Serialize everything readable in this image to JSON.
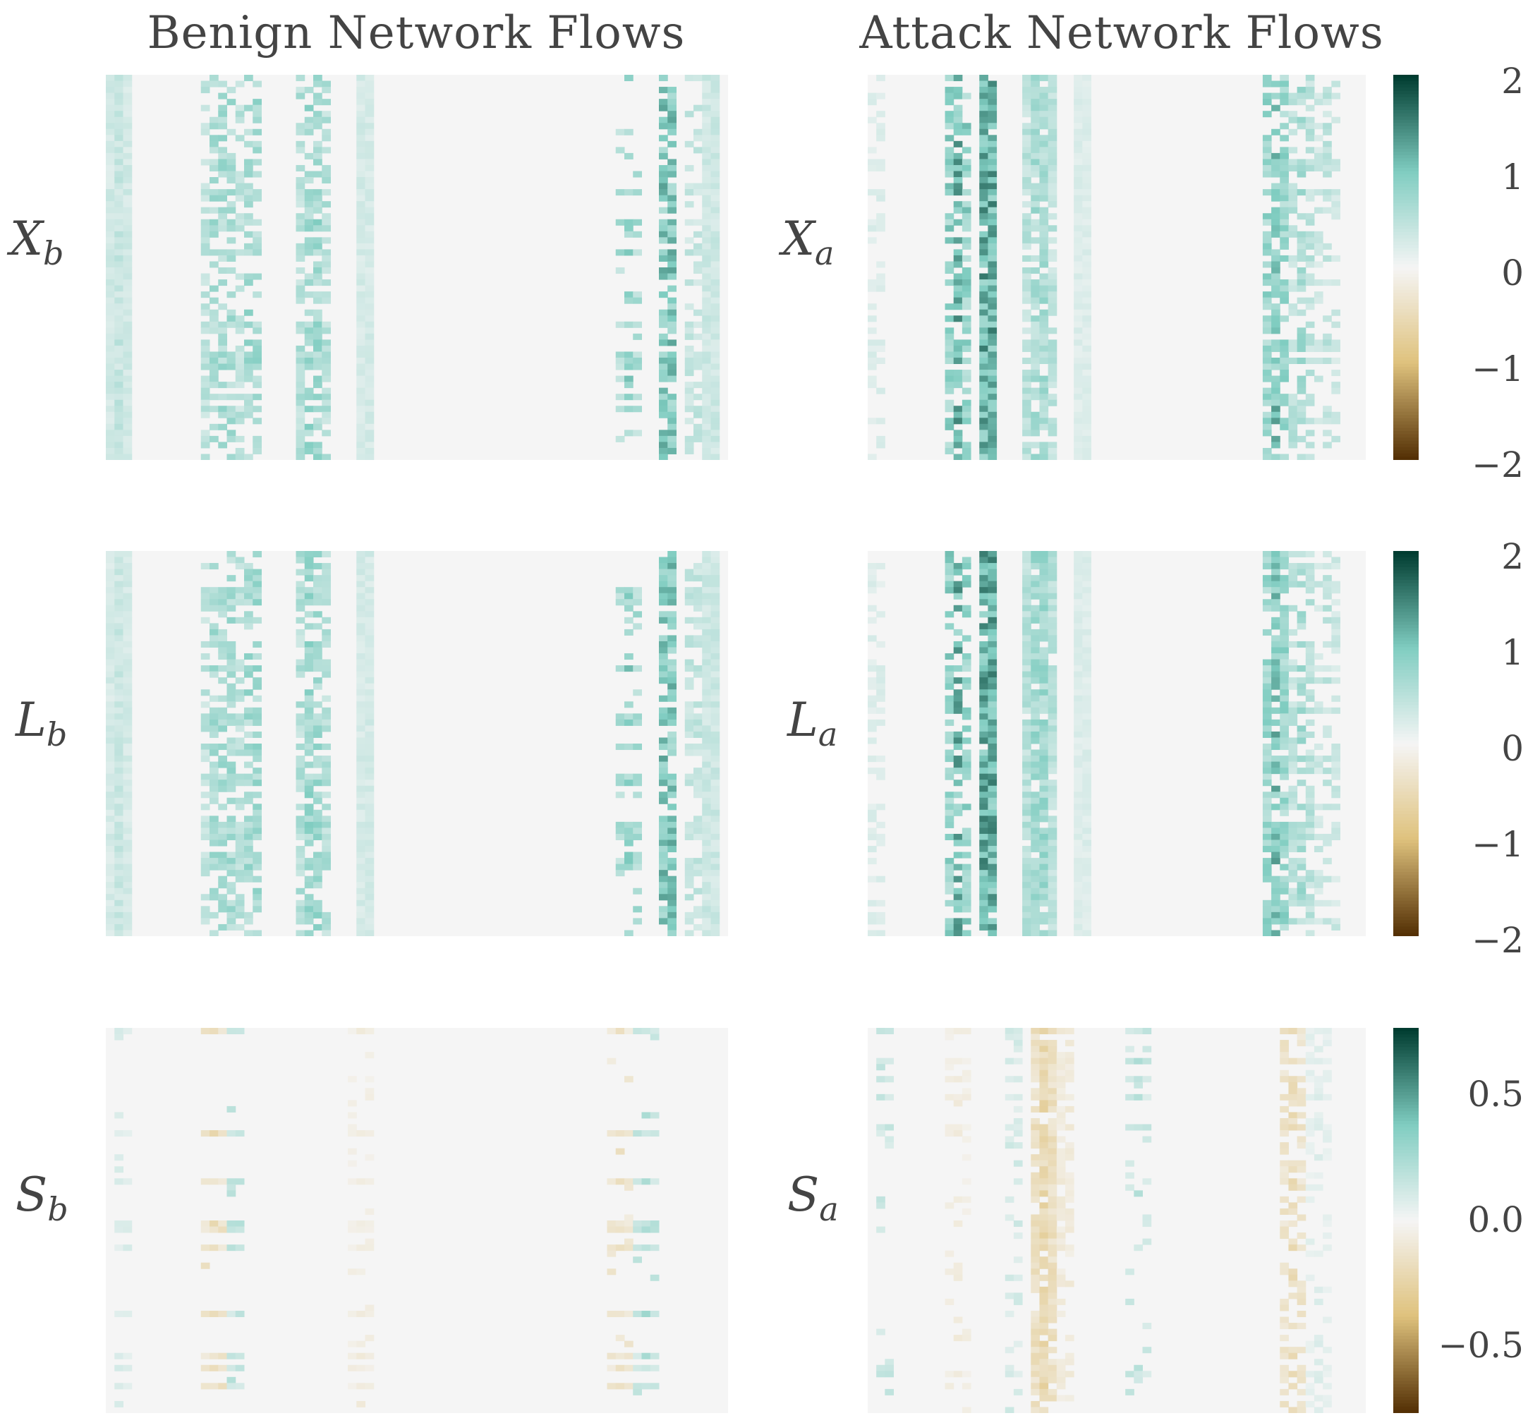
{
  "chart_data": [
    {
      "type": "heatmap",
      "title": "Benign Network Flows",
      "row_label": "X",
      "row_label_sub": "b",
      "colorbar": "cb1",
      "highlights": [
        {
          "cols": [
            0,
            1,
            2
          ],
          "level": 0.22
        },
        {
          "cols": [
            11,
            12,
            13,
            14,
            15
          ],
          "level": 0.35,
          "sparse": 0.5
        },
        {
          "cols": [
            16,
            17
          ],
          "level": 0.5,
          "sparse": 0.5
        },
        {
          "cols": [
            22,
            23,
            24,
            25
          ],
          "level": 0.4,
          "sparse": 0.4
        },
        {
          "cols": [
            29,
            30
          ],
          "level": 0.2
        },
        {
          "cols": [
            59,
            60,
            61
          ],
          "level": 0.45,
          "sparse": 0.85
        },
        {
          "cols": [
            64,
            65
          ],
          "level": 0.7,
          "sparse": 0.3
        },
        {
          "cols": [
            67,
            68
          ],
          "level": 0.3,
          "sparse": 0.6
        },
        {
          "cols": [
            69,
            70
          ],
          "level": 0.25
        }
      ]
    },
    {
      "type": "heatmap",
      "title": "Attack Network Flows",
      "row_label": "X",
      "row_label_sub": "a",
      "colorbar": "cb1",
      "highlights": [
        {
          "cols": [
            0,
            1
          ],
          "level": 0.15,
          "sparse": 0.7
        },
        {
          "cols": [
            9,
            10,
            11
          ],
          "level": 0.6,
          "sparse": 0.45
        },
        {
          "cols": [
            13,
            14
          ],
          "level": 0.85,
          "sparse": 0.05
        },
        {
          "cols": [
            18,
            19,
            20,
            21
          ],
          "level": 0.35,
          "sparse": 0.2
        },
        {
          "cols": [
            24,
            25
          ],
          "level": 0.15
        },
        {
          "cols": [
            46,
            47,
            48
          ],
          "level": 0.55,
          "sparse": 0.3
        },
        {
          "cols": [
            49,
            50,
            51
          ],
          "level": 0.35,
          "sparse": 0.5
        },
        {
          "cols": [
            52,
            53,
            54
          ],
          "level": 0.25,
          "sparse": 0.7
        }
      ]
    },
    {
      "type": "heatmap",
      "row_label": "L",
      "row_label_sub": "b",
      "colorbar": "cb2",
      "highlights": [
        {
          "cols": [
            0,
            1,
            2
          ],
          "level": 0.2
        },
        {
          "cols": [
            11,
            12,
            13,
            14,
            15
          ],
          "level": 0.35,
          "sparse": 0.5
        },
        {
          "cols": [
            16,
            17
          ],
          "level": 0.5,
          "sparse": 0.5
        },
        {
          "cols": [
            22,
            23,
            24,
            25
          ],
          "level": 0.4,
          "sparse": 0.4
        },
        {
          "cols": [
            29,
            30
          ],
          "level": 0.2
        },
        {
          "cols": [
            59,
            60,
            61
          ],
          "level": 0.45,
          "sparse": 0.85
        },
        {
          "cols": [
            64,
            65
          ],
          "level": 0.7,
          "sparse": 0.3
        },
        {
          "cols": [
            67,
            68
          ],
          "level": 0.3,
          "sparse": 0.6
        },
        {
          "cols": [
            69,
            70
          ],
          "level": 0.25
        }
      ]
    },
    {
      "type": "heatmap",
      "row_label": "L",
      "row_label_sub": "a",
      "colorbar": "cb2",
      "highlights": [
        {
          "cols": [
            0,
            1
          ],
          "level": 0.15,
          "sparse": 0.7
        },
        {
          "cols": [
            9,
            10,
            11
          ],
          "level": 0.6,
          "sparse": 0.45
        },
        {
          "cols": [
            13,
            14
          ],
          "level": 0.85,
          "sparse": 0.05
        },
        {
          "cols": [
            18,
            19,
            20,
            21
          ],
          "level": 0.38,
          "sparse": 0.1
        },
        {
          "cols": [
            24,
            25
          ],
          "level": 0.15
        },
        {
          "cols": [
            46,
            47,
            48
          ],
          "level": 0.55,
          "sparse": 0.3
        },
        {
          "cols": [
            49,
            50,
            51
          ],
          "level": 0.35,
          "sparse": 0.5
        },
        {
          "cols": [
            52,
            53,
            54
          ],
          "level": 0.25,
          "sparse": 0.7
        }
      ]
    },
    {
      "type": "heatmap",
      "row_label": "S",
      "row_label_sub": "b",
      "colorbar": "cb3",
      "highlights": [
        {
          "cols": [
            1,
            2
          ],
          "level": 0.15,
          "sparse": 0.95
        },
        {
          "cols": [
            11,
            12,
            13
          ],
          "level": -0.25,
          "sparse": 0.96
        },
        {
          "cols": [
            14,
            15
          ],
          "level": 0.3,
          "sparse": 0.96
        },
        {
          "cols": [
            28,
            29,
            30
          ],
          "level": -0.1,
          "sparse": 0.9
        },
        {
          "cols": [
            58,
            59,
            60
          ],
          "level": -0.2,
          "sparse": 0.95
        },
        {
          "cols": [
            61,
            62,
            63
          ],
          "level": 0.3,
          "sparse": 0.97
        }
      ]
    },
    {
      "type": "heatmap",
      "row_label": "S",
      "row_label_sub": "a",
      "colorbar": "cb3",
      "highlights": [
        {
          "cols": [
            1,
            2
          ],
          "level": 0.25,
          "sparse": 0.85
        },
        {
          "cols": [
            9,
            10,
            11
          ],
          "level": -0.1,
          "sparse": 0.8
        },
        {
          "cols": [
            16,
            17
          ],
          "level": 0.2,
          "sparse": 0.8
        },
        {
          "cols": [
            19,
            20,
            21
          ],
          "level": -0.3,
          "sparse": 0.2
        },
        {
          "cols": [
            22,
            23
          ],
          "level": -0.15,
          "sparse": 0.6
        },
        {
          "cols": [
            30,
            31,
            32
          ],
          "level": 0.25,
          "sparse": 0.9
        },
        {
          "cols": [
            48,
            49,
            50
          ],
          "level": -0.25,
          "sparse": 0.5
        },
        {
          "cols": [
            51,
            52,
            53
          ],
          "level": 0.1,
          "sparse": 0.7
        }
      ]
    }
  ],
  "colorbars": {
    "cb1": {
      "vmin": -2,
      "vmax": 2,
      "ticks": [
        "2",
        "1",
        "0",
        "−1",
        "−2"
      ]
    },
    "cb2": {
      "vmin": -2,
      "vmax": 2,
      "ticks": [
        "2",
        "1",
        "0",
        "−1",
        "−2"
      ]
    },
    "cb3": {
      "vmin": -0.8,
      "vmax": 0.8,
      "ticks": [
        "0.5",
        "0.0",
        "−0.5"
      ],
      "tick_values": [
        0.5,
        0.0,
        -0.5
      ]
    }
  },
  "colormap": {
    "name": "BrBG",
    "negative_color": "#543005",
    "zero_color": "#f5f5f5",
    "positive_color": "#003c30",
    "mid_pos_color": "#80cdc1",
    "mid_neg_color": "#dfc27d"
  }
}
